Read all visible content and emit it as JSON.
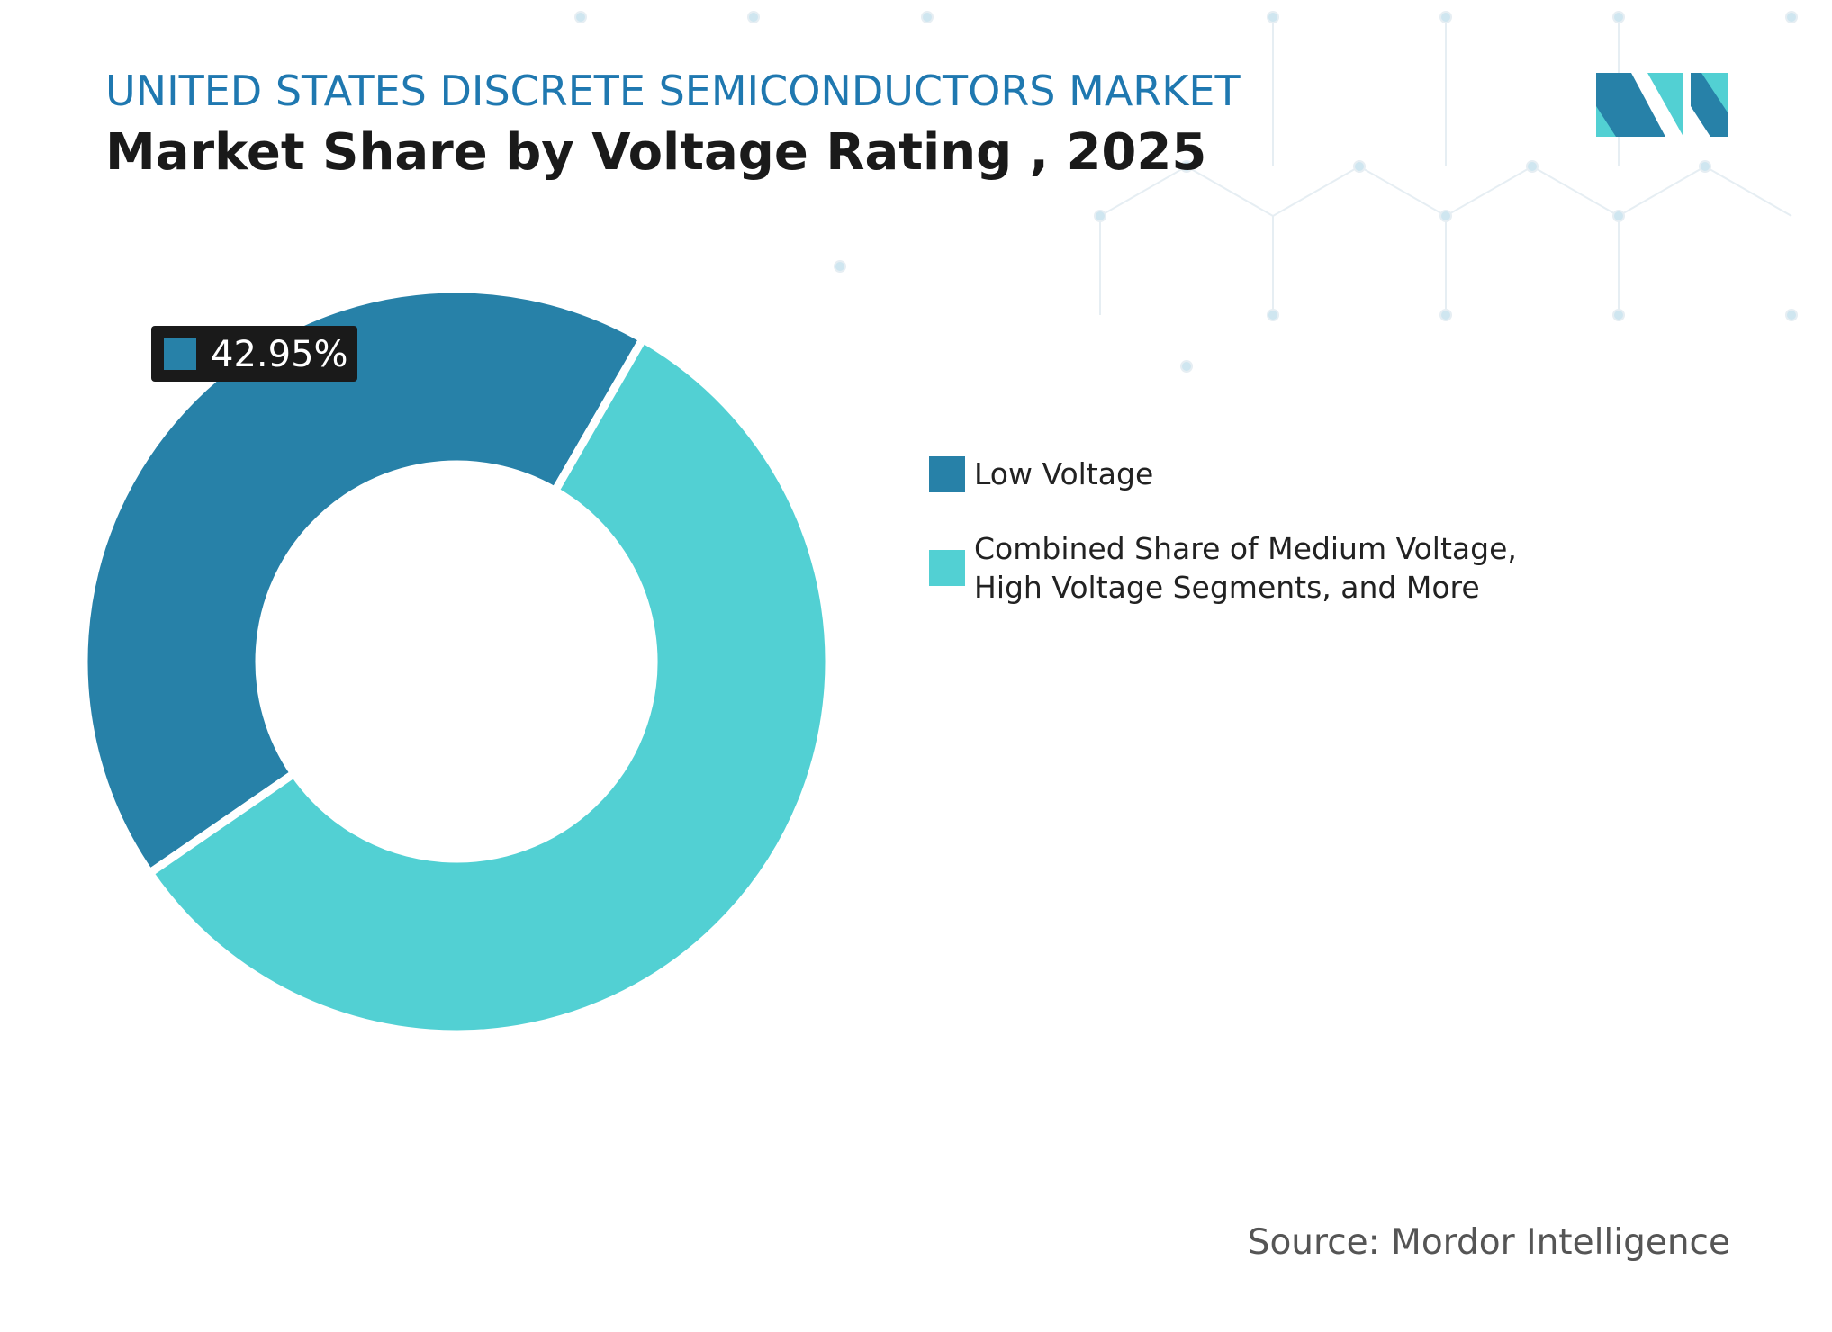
{
  "chart_data": {
    "type": "donut",
    "subtitle": "UNITED STATES DISCRETE SEMICONDUCTORS MARKET",
    "title": "Market Share by Voltage Rating , 2025",
    "categories": [
      "Low Voltage",
      "Combined Share of Medium Voltage, High Voltage Segments, and More"
    ],
    "values": [
      42.95,
      57.05
    ],
    "value_labels": [
      "42.95%",
      null
    ],
    "colors": [
      "#2781a8",
      "#52d0d3"
    ],
    "source": "Source: Mordor Intelligence"
  }
}
